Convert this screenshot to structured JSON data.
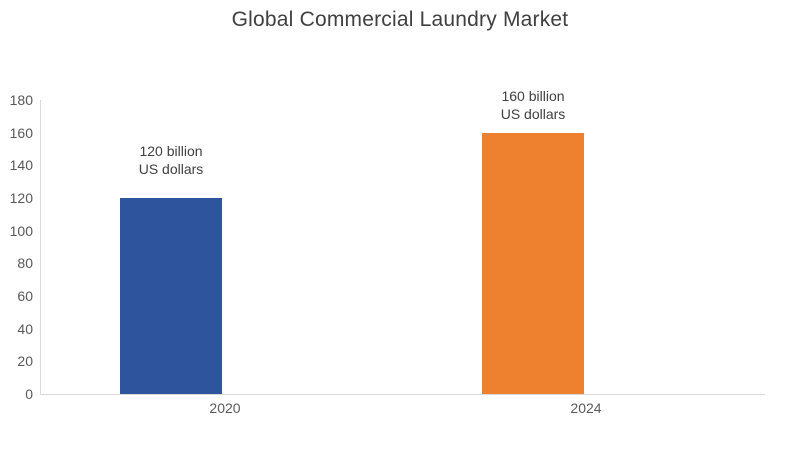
{
  "chart_data": {
    "type": "bar",
    "title": "Global Commercial Laundry Market",
    "categories": [
      "2020",
      "2024"
    ],
    "values": [
      120,
      160
    ],
    "data_labels": [
      [
        "120 billion",
        "US dollars"
      ],
      [
        "160 billion",
        "US dollars"
      ]
    ],
    "bar_colors": [
      "#2E549E",
      "#EE8130"
    ],
    "ylim": [
      0,
      180
    ],
    "yticks": [
      0,
      20,
      40,
      60,
      80,
      100,
      120,
      140,
      160,
      180
    ],
    "xlabel": "",
    "ylabel": "",
    "grid": false,
    "legend": false,
    "colors": {
      "title": "#404040",
      "axis_labels": "#595959",
      "data_labels": "#404040",
      "axis_line": "#D9D9D9"
    }
  }
}
